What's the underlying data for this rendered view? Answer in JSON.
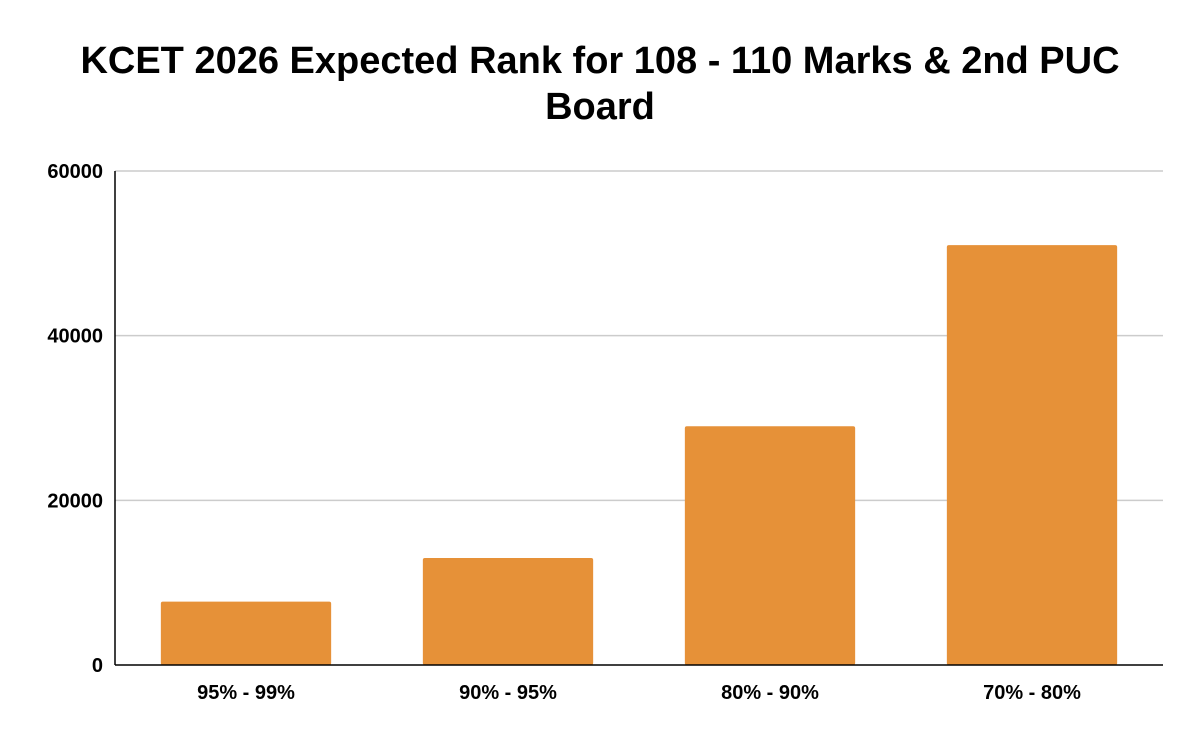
{
  "chart_data": {
    "type": "bar",
    "title": "KCET 2026 Expected Rank for 108 - 110 Marks & 2nd PUC Board",
    "xlabel": "",
    "ylabel": "",
    "categories": [
      "95% - 99%",
      "90% - 95%",
      "80% - 90%",
      "70% - 80%"
    ],
    "values": [
      7700,
      13000,
      29000,
      51000
    ],
    "ylim": [
      0,
      60000
    ],
    "yticks": [
      0,
      20000,
      40000,
      60000
    ],
    "grid": true,
    "legend": "none",
    "bar_color": "#e69138",
    "grid_color": "#cccccc",
    "axis_color": "#000000"
  }
}
